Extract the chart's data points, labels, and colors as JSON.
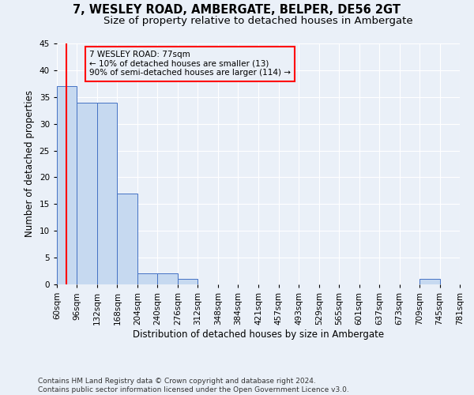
{
  "title1": "7, WESLEY ROAD, AMBERGATE, BELPER, DE56 2GT",
  "title2": "Size of property relative to detached houses in Ambergate",
  "xlabel": "Distribution of detached houses by size in Ambergate",
  "ylabel": "Number of detached properties",
  "bin_edges": [
    60,
    96,
    132,
    168,
    204,
    240,
    276,
    312,
    348,
    384,
    421,
    457,
    493,
    529,
    565,
    601,
    637,
    673,
    709,
    745,
    781
  ],
  "bar_heights": [
    37,
    34,
    34,
    17,
    2,
    2,
    1,
    0,
    0,
    0,
    0,
    0,
    0,
    0,
    0,
    0,
    0,
    0,
    1,
    0
  ],
  "bar_color": "#c6d9f0",
  "bar_edgecolor": "#4472c4",
  "ylim": [
    0,
    45
  ],
  "yticks": [
    0,
    5,
    10,
    15,
    20,
    25,
    30,
    35,
    40,
    45
  ],
  "red_line_x": 77,
  "annotation_text": "7 WESLEY ROAD: 77sqm\n← 10% of detached houses are smaller (13)\n90% of semi-detached houses are larger (114) →",
  "footer_text": "Contains HM Land Registry data © Crown copyright and database right 2024.\nContains public sector information licensed under the Open Government Licence v3.0.",
  "bg_color": "#eaf0f8",
  "grid_color": "#ffffff",
  "title1_fontsize": 10.5,
  "title2_fontsize": 9.5,
  "ylabel_fontsize": 8.5,
  "xlabel_fontsize": 8.5,
  "tick_fontsize": 7.5,
  "annot_fontsize": 7.5,
  "footer_fontsize": 6.5
}
